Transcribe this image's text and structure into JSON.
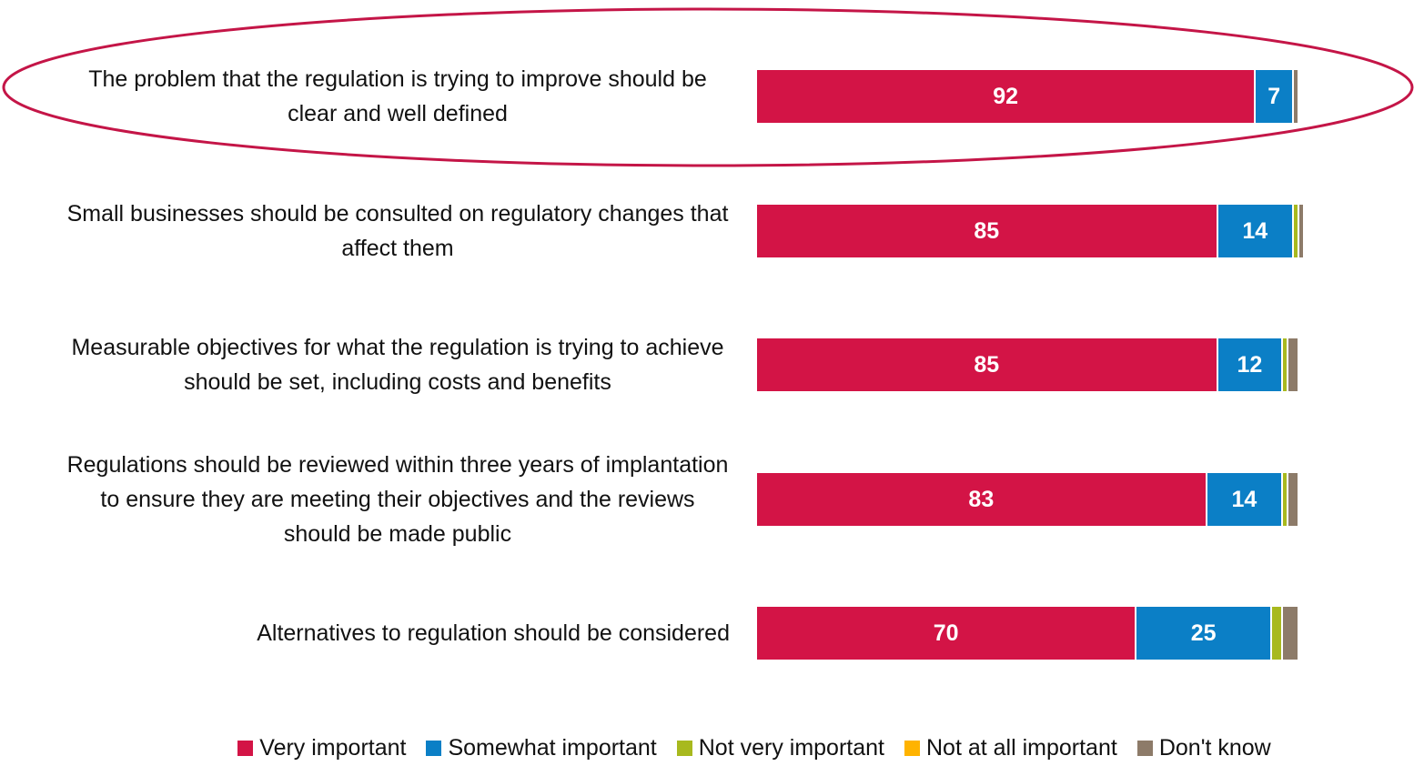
{
  "chart_data": {
    "type": "stacked-bar-horizontal",
    "categories": [
      "The problem that the regulation is trying to improve should be clear and well defined",
      "Small businesses should be consulted on regulatory changes that affect them",
      "Measurable objectives for what the regulation is trying to achieve should be set, including costs and benefits",
      "Regulations should be reviewed within three years of implantation to ensure they are meeting their objectives and the reviews should be made public",
      "Alternatives to regulation should be considered"
    ],
    "series": [
      {
        "name": "Very important",
        "color": "#d31446",
        "values": [
          92,
          85,
          85,
          83,
          70
        ]
      },
      {
        "name": "Somewhat important",
        "color": "#0b7fc6",
        "values": [
          7,
          14,
          12,
          14,
          25
        ]
      },
      {
        "name": "Not very important",
        "color": "#a8b91e",
        "values": [
          0,
          1,
          1,
          1,
          2
        ]
      },
      {
        "name": "Not at all important",
        "color": "#ffb300",
        "values": [
          0,
          0,
          0,
          0,
          0
        ]
      },
      {
        "name": "Don't know",
        "color": "#8d7b69",
        "values": [
          1,
          1,
          2,
          2,
          3
        ]
      }
    ],
    "xlim": [
      0,
      100
    ]
  }
}
